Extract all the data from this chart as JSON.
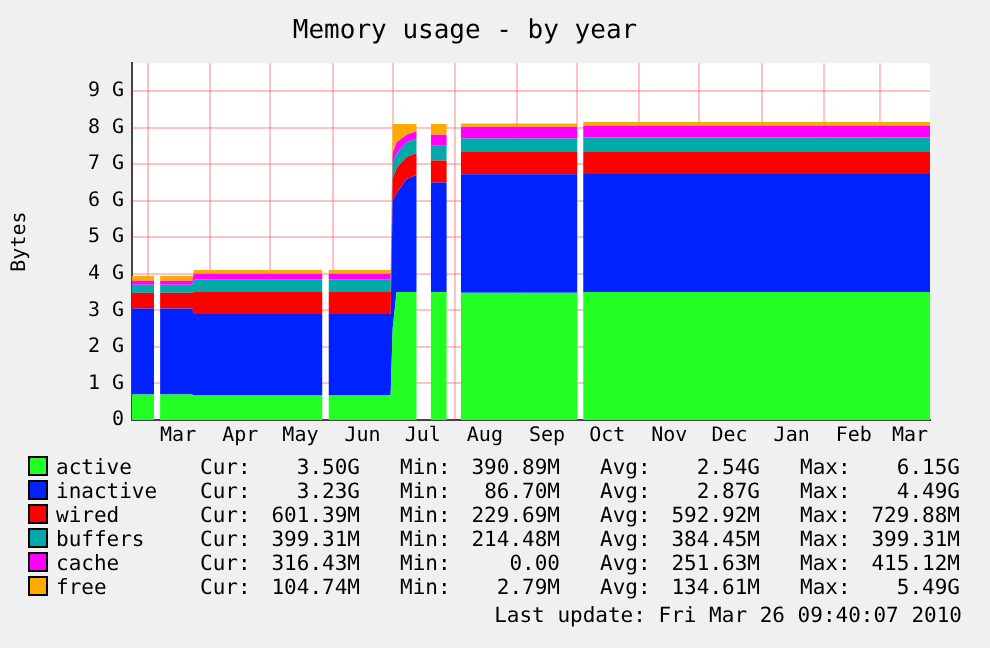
{
  "chart_data": {
    "type": "area",
    "stacked": true,
    "title": "Memory usage - by year",
    "ylabel": "Bytes",
    "grid": true,
    "legend": "bottom",
    "x": [
      "2009-02-21",
      "2009-03-04",
      "2009-03-06",
      "2009-03-07",
      "2009-03-23",
      "2009-03-24",
      "2009-04-20",
      "2009-05-27",
      "2009-05-29",
      "2009-05-30",
      "2009-06-30",
      "2009-07-01",
      "2009-07-03",
      "2009-07-08",
      "2009-07-13",
      "2009-07-16",
      "2009-07-20",
      "2009-07-28",
      "2009-08-01",
      "2009-08-04",
      "2009-09-10",
      "2009-10-01",
      "2009-10-03",
      "2009-10-04",
      "2009-11-20",
      "2009-12-20",
      "2010-01-20",
      "2010-03-26"
    ],
    "xlim": [
      "2009-02-21",
      "2010-03-26"
    ],
    "xticks": [
      {
        "value": "2009-03-01",
        "label": null
      },
      {
        "value": "2009-03-16",
        "label": "Mar"
      },
      {
        "value": "2009-04-01",
        "label": null
      },
      {
        "value": "2009-04-16",
        "label": "Apr"
      },
      {
        "value": "2009-05-01",
        "label": null
      },
      {
        "value": "2009-05-16",
        "label": "May"
      },
      {
        "value": "2009-06-01",
        "label": null
      },
      {
        "value": "2009-06-16",
        "label": "Jun"
      },
      {
        "value": "2009-07-01",
        "label": null
      },
      {
        "value": "2009-07-16",
        "label": "Jul"
      },
      {
        "value": "2009-08-01",
        "label": null
      },
      {
        "value": "2009-08-16",
        "label": "Aug"
      },
      {
        "value": "2009-09-01",
        "label": null
      },
      {
        "value": "2009-09-16",
        "label": "Sep"
      },
      {
        "value": "2009-10-01",
        "label": null
      },
      {
        "value": "2009-10-16",
        "label": "Oct"
      },
      {
        "value": "2009-11-01",
        "label": null
      },
      {
        "value": "2009-11-16",
        "label": "Nov"
      },
      {
        "value": "2009-12-01",
        "label": null
      },
      {
        "value": "2009-12-16",
        "label": "Dec"
      },
      {
        "value": "2010-01-01",
        "label": null
      },
      {
        "value": "2010-01-16",
        "label": "Jan"
      },
      {
        "value": "2010-02-01",
        "label": null
      },
      {
        "value": "2010-02-16",
        "label": "Feb"
      },
      {
        "value": "2010-03-01",
        "label": null
      },
      {
        "value": "2010-03-16",
        "label": "Mar"
      }
    ],
    "ylim": [
      0,
      9.76
    ],
    "yticks": [
      0,
      {
        "value": 1,
        "label": "1 G"
      },
      {
        "value": 2,
        "label": "2 G"
      },
      {
        "value": 3,
        "label": "3 G"
      },
      {
        "value": 4,
        "label": "4 G"
      },
      {
        "value": 5,
        "label": "5 G"
      },
      {
        "value": 6,
        "label": "6 G"
      },
      {
        "value": 7,
        "label": "7 G"
      },
      {
        "value": 8,
        "label": "8 G"
      },
      {
        "value": 9,
        "label": "9 G"
      }
    ],
    "series": [
      {
        "name": "active",
        "color": "#22ff22",
        "values": [
          0.7,
          0.7,
          null,
          0.7,
          0.7,
          0.67,
          0.67,
          0.67,
          null,
          0.67,
          0.67,
          2.5,
          3.5,
          3.5,
          3.5,
          null,
          3.5,
          3.5,
          null,
          3.48,
          3.48,
          3.48,
          null,
          3.5,
          3.5,
          3.5,
          3.5,
          3.5
        ]
      },
      {
        "name": "inactive",
        "color": "#0022ff",
        "values": [
          2.35,
          2.35,
          null,
          2.35,
          2.35,
          2.23,
          2.23,
          2.23,
          null,
          2.23,
          2.23,
          3.5,
          2.7,
          3.1,
          3.2,
          null,
          3.0,
          3.0,
          null,
          3.24,
          3.24,
          3.24,
          null,
          3.23,
          3.23,
          3.23,
          3.23,
          3.23
        ]
      },
      {
        "name": "wired",
        "color": "#ff0000",
        "values": [
          0.43,
          0.43,
          null,
          0.43,
          0.43,
          0.6,
          0.6,
          0.6,
          null,
          0.6,
          0.6,
          0.6,
          0.7,
          0.6,
          0.6,
          null,
          0.6,
          0.6,
          null,
          0.61,
          0.61,
          0.61,
          null,
          0.6,
          0.6,
          0.6,
          0.6,
          0.6
        ]
      },
      {
        "name": "buffers",
        "color": "#00aaaa",
        "values": [
          0.22,
          0.22,
          null,
          0.22,
          0.22,
          0.35,
          0.35,
          0.35,
          null,
          0.35,
          0.35,
          0.4,
          0.4,
          0.4,
          0.4,
          null,
          0.4,
          0.4,
          null,
          0.37,
          0.37,
          0.37,
          null,
          0.4,
          0.4,
          0.4,
          0.4,
          0.4
        ]
      },
      {
        "name": "cache",
        "color": "#ff00ff",
        "values": [
          0.11,
          0.11,
          null,
          0.11,
          0.11,
          0.15,
          0.15,
          0.15,
          null,
          0.15,
          0.15,
          0.3,
          0.3,
          0.2,
          0.2,
          null,
          0.3,
          0.3,
          null,
          0.32,
          0.32,
          0.32,
          null,
          0.32,
          0.32,
          0.32,
          0.32,
          0.32
        ]
      },
      {
        "name": "free",
        "color": "#ffaa00",
        "values": [
          0.13,
          0.13,
          null,
          0.13,
          0.13,
          0.1,
          0.1,
          0.1,
          null,
          0.1,
          0.1,
          0.8,
          0.5,
          0.3,
          0.2,
          null,
          0.3,
          0.3,
          null,
          0.09,
          0.09,
          0.09,
          null,
          0.1,
          0.1,
          0.1,
          0.1,
          0.1
        ]
      }
    ],
    "annotations": [
      "Cur: 3.50G Min: 390.89M Avg: 2.54G Max: 6.15G",
      "Cur: 3.23G Min: 86.70M Avg: 2.87G Max: 4.49G",
      "Cur: 601.39M Min: 229.69M Avg: 592.92M Max: 729.88M",
      "Cur: 399.31M Min: 214.48M Avg: 384.45M Max: 399.31M",
      "Cur: 316.43M Min: 0.00 Avg: 251.63M Max: 415.12M",
      "Cur: 104.74M Min: 2.79M Avg: 134.61M Max: 5.49G",
      "Last update: Fri Mar 26 09:40:07 2010"
    ]
  }
}
